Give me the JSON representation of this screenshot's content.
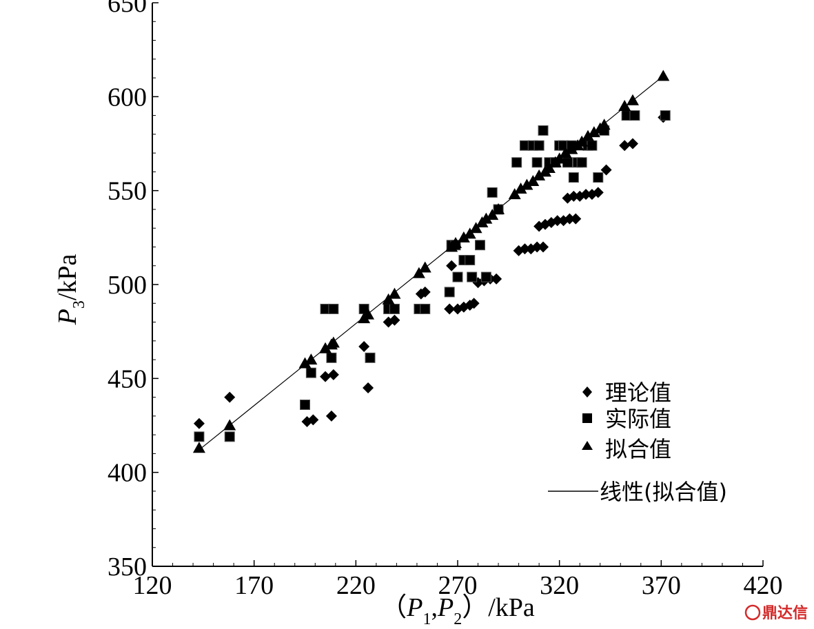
{
  "chart_data": {
    "type": "scatter",
    "xlabel": {
      "open": "（",
      "p1": "P",
      "s1": "1",
      "comma": ",",
      "p2": "P",
      "s2": "2",
      "close": "）/kPa"
    },
    "ylabel": {
      "p": "P",
      "s": "3",
      "unit": "/kPa"
    },
    "xlim": [
      120,
      420
    ],
    "ylim": [
      350,
      650
    ],
    "x_ticks": [
      "120",
      "170",
      "220",
      "270",
      "320",
      "370",
      "420"
    ],
    "y_ticks": [
      "350",
      "400",
      "450",
      "500",
      "550",
      "600",
      "650"
    ],
    "legend_position": "lower-right",
    "series": [
      {
        "name": "理论值",
        "marker": "diamond",
        "color": "#000000",
        "points": [
          [
            143,
            426
          ],
          [
            158,
            440
          ],
          [
            196,
            427
          ],
          [
            199,
            428
          ],
          [
            205,
            451
          ],
          [
            208,
            430
          ],
          [
            209,
            452
          ],
          [
            224,
            467
          ],
          [
            226,
            445
          ],
          [
            236,
            480
          ],
          [
            239,
            481
          ],
          [
            252,
            495
          ],
          [
            254,
            496
          ],
          [
            266,
            487
          ],
          [
            267,
            510
          ],
          [
            270,
            487
          ],
          [
            273,
            488
          ],
          [
            276,
            489
          ],
          [
            278,
            490
          ],
          [
            280,
            501
          ],
          [
            283,
            502
          ],
          [
            286,
            503
          ],
          [
            289,
            503
          ],
          [
            300,
            518
          ],
          [
            303,
            519
          ],
          [
            306,
            519
          ],
          [
            309,
            520
          ],
          [
            312,
            520
          ],
          [
            310,
            531
          ],
          [
            313,
            532
          ],
          [
            316,
            533
          ],
          [
            319,
            534
          ],
          [
            322,
            534
          ],
          [
            325,
            535
          ],
          [
            328,
            535
          ],
          [
            324,
            546
          ],
          [
            327,
            547
          ],
          [
            330,
            547
          ],
          [
            333,
            548
          ],
          [
            336,
            548
          ],
          [
            339,
            549
          ],
          [
            343,
            561
          ],
          [
            352,
            574
          ],
          [
            356,
            575
          ],
          [
            371,
            589
          ]
        ]
      },
      {
        "name": "实际值",
        "marker": "square",
        "color": "#000000",
        "points": [
          [
            143,
            419
          ],
          [
            158,
            419
          ],
          [
            195,
            436
          ],
          [
            198,
            453
          ],
          [
            205,
            487
          ],
          [
            208,
            461
          ],
          [
            209,
            487
          ],
          [
            224,
            487
          ],
          [
            227,
            461
          ],
          [
            236,
            487
          ],
          [
            239,
            487
          ],
          [
            251,
            487
          ],
          [
            254,
            487
          ],
          [
            266,
            496
          ],
          [
            267,
            521
          ],
          [
            269,
            521
          ],
          [
            270,
            504
          ],
          [
            273,
            513
          ],
          [
            276,
            513
          ],
          [
            277,
            504
          ],
          [
            281,
            521
          ],
          [
            284,
            504
          ],
          [
            287,
            549
          ],
          [
            290,
            540
          ],
          [
            299,
            565
          ],
          [
            303,
            574
          ],
          [
            307,
            574
          ],
          [
            309,
            565
          ],
          [
            310,
            574
          ],
          [
            312,
            582
          ],
          [
            315,
            565
          ],
          [
            318,
            565
          ],
          [
            320,
            574
          ],
          [
            322,
            574
          ],
          [
            324,
            565
          ],
          [
            326,
            574
          ],
          [
            327,
            557
          ],
          [
            329,
            565
          ],
          [
            331,
            565
          ],
          [
            334,
            574
          ],
          [
            336,
            574
          ],
          [
            339,
            557
          ],
          [
            342,
            582
          ],
          [
            353,
            590
          ],
          [
            357,
            590
          ],
          [
            372,
            590
          ]
        ]
      },
      {
        "name": "拟合值",
        "marker": "triangle",
        "color": "#000000",
        "points": [
          [
            143,
            413
          ],
          [
            158,
            425
          ],
          [
            195,
            458
          ],
          [
            198,
            460
          ],
          [
            205,
            466
          ],
          [
            208,
            468
          ],
          [
            209,
            469
          ],
          [
            224,
            482
          ],
          [
            226,
            484
          ],
          [
            236,
            492
          ],
          [
            239,
            495
          ],
          [
            251,
            506
          ],
          [
            254,
            509
          ],
          [
            267,
            520
          ],
          [
            269,
            522
          ],
          [
            273,
            525
          ],
          [
            276,
            527
          ],
          [
            279,
            530
          ],
          [
            282,
            533
          ],
          [
            284,
            535
          ],
          [
            287,
            537
          ],
          [
            290,
            540
          ],
          [
            298,
            548
          ],
          [
            301,
            551
          ],
          [
            304,
            553
          ],
          [
            307,
            555
          ],
          [
            310,
            558
          ],
          [
            313,
            560
          ],
          [
            315,
            562
          ],
          [
            318,
            565
          ],
          [
            320,
            567
          ],
          [
            323,
            570
          ],
          [
            326,
            572
          ],
          [
            329,
            574
          ],
          [
            331,
            576
          ],
          [
            334,
            579
          ],
          [
            337,
            581
          ],
          [
            340,
            583
          ],
          [
            342,
            585
          ],
          [
            352,
            595
          ],
          [
            356,
            598
          ],
          [
            371,
            611
          ]
        ]
      },
      {
        "name": "线性(拟合值)",
        "marker": "line",
        "color": "#000000",
        "line": [
          [
            143,
            412
          ],
          [
            371,
            611
          ]
        ]
      }
    ]
  },
  "watermark": "鼎达信"
}
